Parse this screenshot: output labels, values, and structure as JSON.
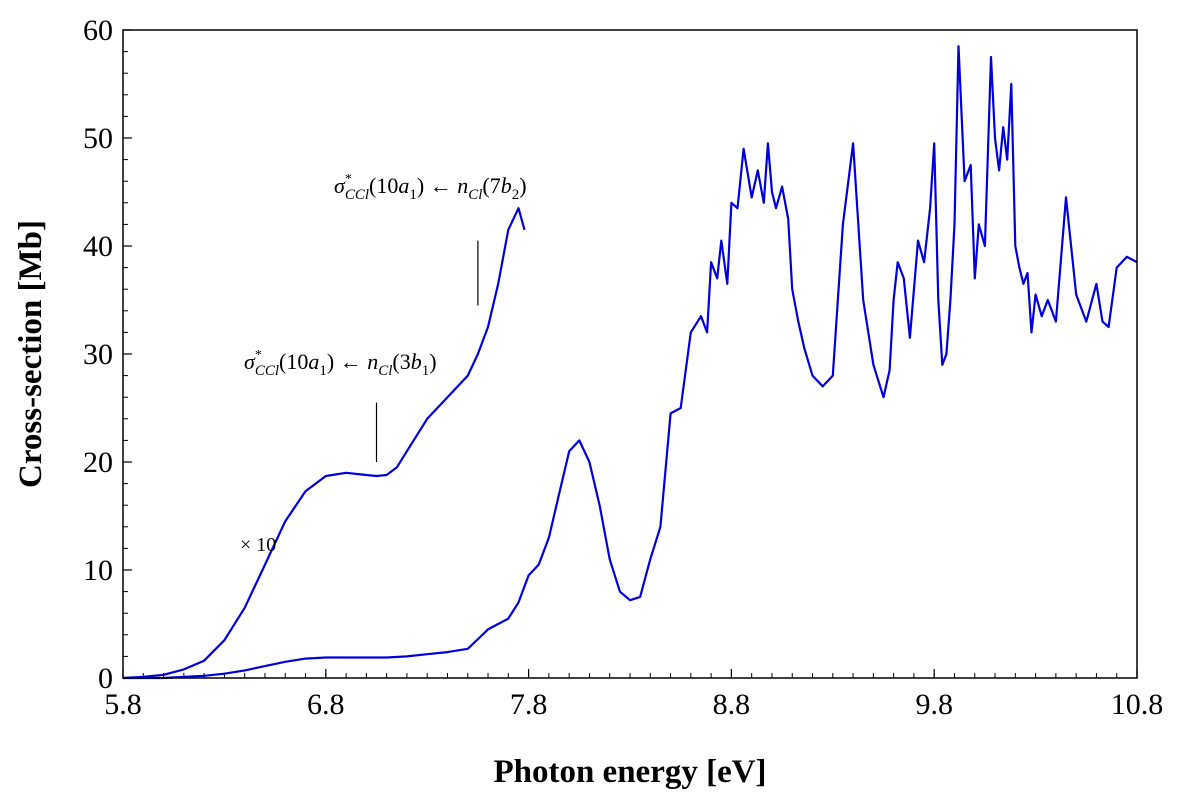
{
  "chart_data": {
    "type": "line",
    "title": "",
    "xlabel": "Photon energy [eV]",
    "ylabel": "Cross-section [Mb]",
    "xlim": [
      5.8,
      10.8
    ],
    "ylim": [
      0,
      60
    ],
    "x_ticks": [
      "5.8",
      "6.8",
      "7.8",
      "8.8",
      "9.8",
      "10.8"
    ],
    "y_ticks": [
      "0",
      "10",
      "20",
      "30",
      "40",
      "50",
      "60"
    ],
    "grid": false,
    "legend": "none",
    "line_color": "#0000dd",
    "series": [
      {
        "values_x": [
          5.8,
          5.9,
          6.0,
          6.1,
          6.2,
          6.3,
          6.4,
          6.5,
          6.6,
          6.7,
          6.8,
          6.9,
          7.0,
          7.1,
          7.2,
          7.3,
          7.4,
          7.5,
          7.6,
          7.7,
          7.75,
          7.8,
          7.85,
          7.9,
          7.95,
          8.0,
          8.05,
          8.1,
          8.15,
          8.2,
          8.25,
          8.3,
          8.35,
          8.4,
          8.45,
          8.5,
          8.55,
          8.6,
          8.65,
          8.68,
          8.7,
          8.73,
          8.75,
          8.78,
          8.8,
          8.83,
          8.86,
          8.9,
          8.93,
          8.96,
          8.98,
          9.0,
          9.02,
          9.05,
          9.08,
          9.1,
          9.13,
          9.16,
          9.2,
          9.25,
          9.3,
          9.35,
          9.4,
          9.45,
          9.5,
          9.55,
          9.58,
          9.6,
          9.62,
          9.65,
          9.68,
          9.72,
          9.75,
          9.78,
          9.8,
          9.82,
          9.84,
          9.86,
          9.88,
          9.9,
          9.92,
          9.95,
          9.98,
          10.0,
          10.02,
          10.05,
          10.08,
          10.1,
          10.12,
          10.14,
          10.16,
          10.18,
          10.2,
          10.22,
          10.24,
          10.26,
          10.28,
          10.3,
          10.33,
          10.36,
          10.4,
          10.45,
          10.5,
          10.55,
          10.6,
          10.63,
          10.66,
          10.7,
          10.75,
          10.8
        ],
        "values_y": [
          0,
          0,
          0,
          0.1,
          0.2,
          0.4,
          0.7,
          1.1,
          1.5,
          1.8,
          1.9,
          1.9,
          1.9,
          1.9,
          2.0,
          2.2,
          2.4,
          2.7,
          4.5,
          5.5,
          7.0,
          9.5,
          10.5,
          13.0,
          17.0,
          21.0,
          22.0,
          20.0,
          16.0,
          11.0,
          8.0,
          7.2,
          7.5,
          11.0,
          14.0,
          24.5,
          25.0,
          32.0,
          33.5,
          32.0,
          38.5,
          37.0,
          40.5,
          36.5,
          44.0,
          43.5,
          49.0,
          44.5,
          47.0,
          44.0,
          49.5,
          45.0,
          43.5,
          45.5,
          42.5,
          36.0,
          33.0,
          30.5,
          28.0,
          27.0,
          28.0,
          42.0,
          49.5,
          35.0,
          29.0,
          26.0,
          28.5,
          35.0,
          38.5,
          37.0,
          31.5,
          40.5,
          38.5,
          43.5,
          49.5,
          35.0,
          29.0,
          30.0,
          35.0,
          42.0,
          58.5,
          46.0,
          47.5,
          37.0,
          42.0,
          40.0,
          57.5,
          50.0,
          47.0,
          51.0,
          48.0,
          55.0,
          40.0,
          38.0,
          36.5,
          37.5,
          32.0,
          35.5,
          33.5,
          35.0,
          33.0,
          44.5,
          35.5,
          33.0,
          36.5,
          33.0,
          32.5,
          38.0,
          39.0,
          38.5
        ]
      },
      {
        "label": "× 10",
        "values_x": [
          5.8,
          5.9,
          6.0,
          6.1,
          6.2,
          6.3,
          6.4,
          6.5,
          6.6,
          6.7,
          6.8,
          6.9,
          7.0,
          7.05,
          7.1,
          7.15,
          7.2,
          7.3,
          7.4,
          7.5,
          7.55,
          7.6,
          7.65,
          7.7,
          7.75,
          7.78
        ],
        "values_y": [
          0,
          0.1,
          0.3,
          0.8,
          1.6,
          3.5,
          6.5,
          10.5,
          14.5,
          17.3,
          18.7,
          19.0,
          18.8,
          18.7,
          18.8,
          19.5,
          21.0,
          24.0,
          26.0,
          28.0,
          30.0,
          32.5,
          36.5,
          41.5,
          43.5,
          41.5
        ]
      }
    ],
    "annotations": [
      {
        "text_math": "σ*CCl(10a1) ← nCl(7b2)",
        "marker_x": 7.55,
        "marker_y_range": [
          34.5,
          40.5
        ]
      },
      {
        "text_math": "σ*CCl(10a1) ← nCl(3b1)",
        "marker_x": 7.05,
        "marker_y_range": [
          20,
          25.5
        ]
      },
      {
        "text": "× 10"
      }
    ]
  },
  "annot_top": {
    "sigma": "σ",
    "sup": "*",
    "sub_ccl": "CCl",
    "paren1": "(10",
    "a": "a",
    "sub1": "1",
    "paren_close": ")",
    "arrow": " ← ",
    "n": "n",
    "sub_cl": "Cl",
    "paren2": "(7",
    "b": "b",
    "sub2": "2",
    "end": ")"
  },
  "annot_mid": {
    "sigma": "σ",
    "sup": "*",
    "sub_ccl": "CCl",
    "paren1": "(10",
    "a": "a",
    "sub1": "1",
    "paren_close": ")",
    "arrow": " ← ",
    "n": "n",
    "sub_cl": "Cl",
    "paren2": "(3",
    "b": "b",
    "sub2": "1",
    "end": ")"
  },
  "scale_label": "× 10"
}
